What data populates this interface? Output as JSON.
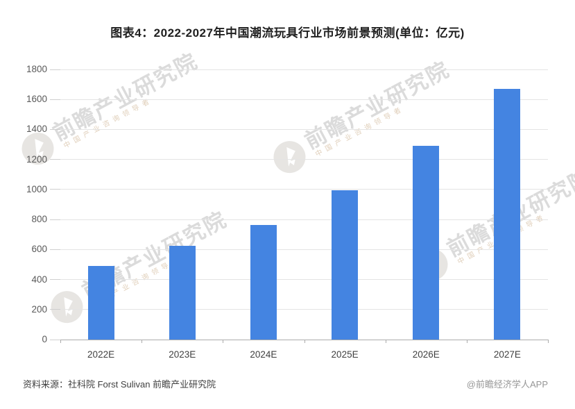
{
  "title": "图表4：2022-2027年中国潮流玩具行业市场前景预测(单位：亿元)",
  "footer": {
    "source": "资料来源：社科院 Forst Sulivan 前瞻产业研究院",
    "credit": "@前瞻经济学人APP"
  },
  "watermark": {
    "text": "前瞻产业研究院",
    "subtext": "中国产业咨询领导者"
  },
  "colors": {
    "bar": "#4484e1",
    "gridline": "#e4e4e4",
    "axis": "#ababab",
    "title_text": "#1f1f1f",
    "tick_label": "#595959"
  },
  "chart_data": {
    "type": "bar",
    "title": "图表4：2022-2027年中国潮流玩具行业市场前景预测(单位：亿元)",
    "unit": "亿元",
    "categories": [
      "2022E",
      "2023E",
      "2024E",
      "2025E",
      "2026E",
      "2027E"
    ],
    "values": [
      490,
      625,
      765,
      995,
      1290,
      1670
    ],
    "xlabel": "",
    "ylabel": "",
    "ylim": [
      0,
      1800
    ],
    "yticks": [
      0,
      200,
      400,
      600,
      800,
      1000,
      1200,
      1400,
      1600,
      1800
    ],
    "grid": true,
    "legend": false,
    "bar_color": "#4484e1"
  }
}
